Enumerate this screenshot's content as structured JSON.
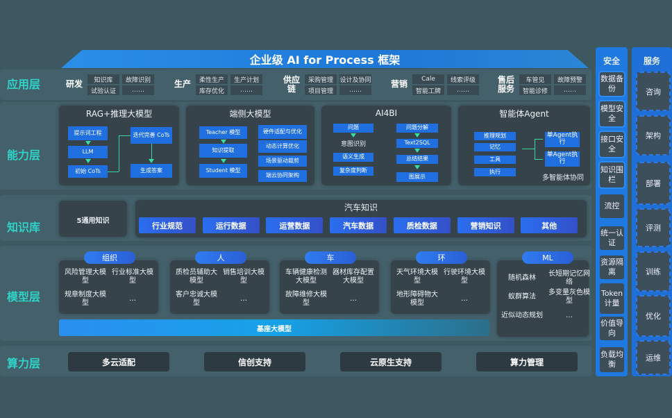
{
  "title": "企业级 AI for Process 框架",
  "layers": {
    "app": "应用层",
    "ability": "能力层",
    "knowledge": "知识库",
    "model": "模型层",
    "compute": "算力层"
  },
  "app_groups": [
    {
      "name": "研发",
      "items": [
        "知识库",
        "故障识别",
        "试验认证",
        "……"
      ]
    },
    {
      "name": "生产",
      "items": [
        "柔性生产",
        "生产计划",
        "库存优化",
        "……"
      ]
    },
    {
      "name": "供应链",
      "items": [
        "采购管理",
        "设计及协同",
        "项目管理",
        "……"
      ]
    },
    {
      "name": "营销",
      "items": [
        "Cale",
        "线索评级",
        "智能工牌",
        "……"
      ]
    },
    {
      "name": "售后服务",
      "items": [
        "车管见",
        "故障预警",
        "智能诊修",
        "……"
      ]
    }
  ],
  "ability": {
    "rag": {
      "title": "RAG+推理大模型",
      "items": [
        "提示词工程",
        "LLM",
        "初始 CoTs",
        "迭代完善 CoTs",
        "生成答案"
      ]
    },
    "edge": {
      "title": "端侧大模型",
      "items": [
        "Teacher 模型",
        "知识提取",
        "Student 模型",
        "硬件适配与优化",
        "动态计算优化",
        "场景驱动裁剪",
        "端云协同架构"
      ]
    },
    "ai4bi": {
      "title": "AI4BI",
      "items": [
        "问题",
        "意图识别",
        "语义生成",
        "复杂度判断",
        "问题分解",
        "Text2SQL",
        "总结结果",
        "图展示"
      ]
    },
    "agent": {
      "title": "智能体Agent",
      "items": [
        "推理规划",
        "记忆",
        "工具",
        "执行",
        "单Agent执行",
        "单Agent执行"
      ],
      "footer": "多智能体协同"
    }
  },
  "knowledge": {
    "general": "5通用知识",
    "auto_title": "汽车知识",
    "chips": [
      "行业规范",
      "运行数据",
      "运营数据",
      "汽车数据",
      "质检数据",
      "营销知识",
      "其他"
    ]
  },
  "model": {
    "groups": [
      {
        "name": "组织",
        "items": [
          "风险管理大模型",
          "行业标准大模型",
          "规章制度大模型",
          "…"
        ]
      },
      {
        "name": "人",
        "items": [
          "质检员辅助大模型",
          "销售培训大模型",
          "客户忠诚大模型",
          "…"
        ]
      },
      {
        "name": "车",
        "items": [
          "车辆健康检测大模型",
          "器材库存配置大模型",
          "故障维修大模型",
          "…"
        ]
      },
      {
        "name": "环",
        "items": [
          "天气环境大模型",
          "行驶环境大模型",
          "地形障碍物大模型",
          "…"
        ]
      },
      {
        "name": "ML",
        "items": [
          "随机森林",
          "长短期记忆网络",
          "蚁群算法",
          "多变量灰色模型",
          "近似动态规划",
          "…"
        ]
      }
    ],
    "base": "基座大模型"
  },
  "compute": [
    "多云适配",
    "信创支持",
    "云原生支持",
    "算力管理"
  ],
  "security": {
    "title": "安全",
    "items": [
      "数据备份",
      "模型安全",
      "接口安全",
      "知识围栏",
      "流控",
      "统一认证",
      "资源隔离",
      "Token计量",
      "价值导向",
      "负载均衡"
    ]
  },
  "service": {
    "title": "服务",
    "items": [
      "咨询",
      "架构",
      "部署",
      "评测",
      "训练",
      "优化",
      "运维"
    ]
  }
}
